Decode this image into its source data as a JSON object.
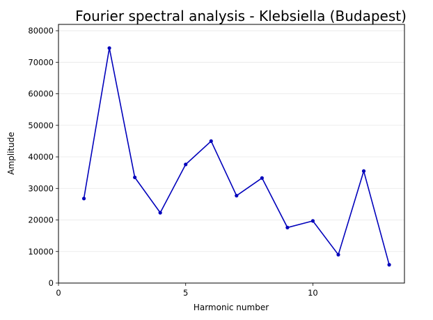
{
  "chart_data": {
    "type": "line",
    "title": "Fourier spectral analysis - Klebsiella (Budapest)",
    "xlabel": "Harmonic number",
    "ylabel": "Amplitude",
    "xlim": [
      0,
      13.6
    ],
    "ylim": [
      0,
      82000
    ],
    "xticks": [
      0,
      5,
      10
    ],
    "yticks": [
      0,
      10000,
      20000,
      30000,
      40000,
      50000,
      60000,
      70000,
      80000
    ],
    "grid": "horizontal",
    "legend": "none",
    "series": [
      {
        "color": "#0000bb",
        "x": [
          1,
          2,
          3,
          4,
          5,
          6,
          7,
          8,
          9,
          10,
          11,
          12,
          13
        ],
        "values": [
          26800,
          74500,
          33500,
          22300,
          37600,
          45000,
          27700,
          33300,
          17600,
          19700,
          9000,
          35500,
          5800
        ]
      }
    ]
  }
}
